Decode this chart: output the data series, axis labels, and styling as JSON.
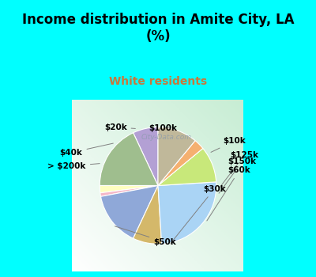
{
  "title": "Income distribution in Amite City, LA\n(%)",
  "subtitle": "White residents",
  "title_color": "#000000",
  "subtitle_color": "#c8783c",
  "background_cyan": "#00FFFF",
  "watermark": "City-Data.com",
  "labels": [
    "$100k",
    "$10k",
    "$125k",
    "$150k",
    "$60k",
    "$30k",
    "$50k",
    "> $200k",
    "$40k",
    "$20k"
  ],
  "values": [
    7,
    18,
    2,
    1,
    15,
    8,
    25,
    10,
    3,
    11
  ],
  "colors": [
    "#b3a0d4",
    "#9fbe8e",
    "#ffffc0",
    "#f5b8c8",
    "#8fa8d8",
    "#d4b86a",
    "#aad4f5",
    "#c8e87a",
    "#f5b070",
    "#c0b89a"
  ],
  "startangle": 90,
  "label_fontsize": 7.5,
  "title_fontsize": 12,
  "subtitle_fontsize": 10
}
